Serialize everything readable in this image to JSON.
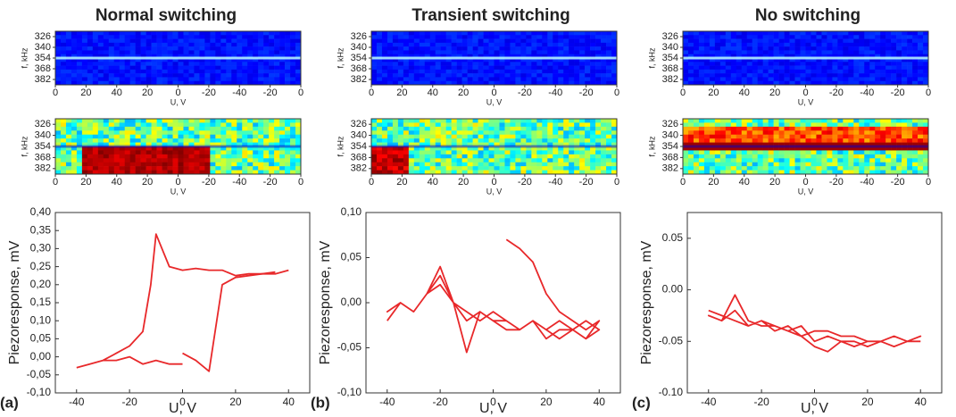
{
  "chart_data": [
    {
      "type": "line",
      "title": "Normal switching",
      "panel_label": "(a)",
      "xlabel": "U, V",
      "ylabel": "Piezoresponse, mV",
      "x": [
        -40,
        -35,
        -30,
        -25,
        -20,
        -15,
        -10,
        -5,
        0,
        5,
        10,
        15,
        20,
        25,
        30,
        35,
        40,
        35,
        30,
        25,
        20,
        15,
        10,
        5,
        0,
        -5,
        -10,
        -12,
        -15,
        -20,
        -25,
        -30,
        -35,
        -40,
        -35,
        -30,
        -25,
        -20,
        -15,
        -10,
        -5,
        0
      ],
      "series": [
        {
          "color": "#e8282a",
          "values": [
            -0.03,
            -0.02,
            -0.01,
            -0.01,
            0.0,
            -0.02,
            -0.01,
            -0.02,
            -0.02,
            null,
            null,
            null,
            null,
            null,
            null,
            null,
            null,
            0.235,
            0.23,
            0.23,
            0.225,
            0.24,
            0.24,
            0.245,
            0.24,
            0.25,
            0.34,
            0.2,
            0.07,
            0.03,
            0.01,
            -0.01,
            -0.02,
            -0.03,
            null,
            null,
            null,
            null,
            null,
            null,
            null,
            null
          ]
        },
        {
          "color": "#e8282a",
          "values": [
            null,
            null,
            null,
            null,
            null,
            null,
            null,
            null,
            0.01,
            -0.01,
            -0.04,
            0.2,
            0.22,
            0.225,
            0.23,
            0.23,
            0.24,
            null,
            null,
            null,
            null,
            null,
            null,
            null,
            null,
            null,
            null,
            null,
            null,
            null,
            null,
            null,
            null,
            null,
            null,
            null,
            null,
            null,
            null,
            null,
            null,
            null
          ]
        }
      ],
      "xlim": [
        -48,
        48
      ],
      "ylim": [
        -0.1,
        0.4
      ],
      "xticks": [
        -40,
        -20,
        0,
        20,
        40
      ],
      "yticks": [
        {
          "value": -0.1,
          "label": "-0,10"
        },
        {
          "value": -0.05,
          "label": "-0,05"
        },
        {
          "value": 0,
          "label": "0,00"
        },
        {
          "value": 0.05,
          "label": "0,05"
        },
        {
          "value": 0.1,
          "label": "0,10"
        },
        {
          "value": 0.15,
          "label": "0,15"
        },
        {
          "value": 0.2,
          "label": "0,20"
        },
        {
          "value": 0.25,
          "label": "0,25"
        },
        {
          "value": 0.3,
          "label": "0,30"
        },
        {
          "value": 0.35,
          "label": "0,35"
        },
        {
          "value": 0.4,
          "label": "0,40"
        }
      ],
      "spectrogram": {
        "ylabel": "f, kHz",
        "xlabel": "U, V",
        "ylim": [
          319,
          389
        ],
        "yticks": [
          326,
          340,
          354,
          368,
          382
        ],
        "xticks": [
          "0",
          "20",
          "40",
          "20",
          "0",
          "-20",
          "-40",
          "-20",
          "0"
        ],
        "resonance": 354
      }
    },
    {
      "type": "line",
      "title": "Transient switching",
      "panel_label": "(b)",
      "xlabel": "U, V",
      "ylabel": "Piezoresponse, mV",
      "x": [
        -40,
        -35,
        -30,
        -25,
        -20,
        -15,
        -10,
        -5,
        0,
        5,
        10,
        15,
        20,
        25,
        30,
        35,
        40,
        35,
        30,
        25,
        20,
        15,
        10,
        5,
        0,
        -5,
        -10,
        -15,
        -20,
        -25,
        -30,
        -35,
        -40,
        -35,
        -30,
        -25,
        -20,
        -15,
        -10,
        -5,
        0,
        5,
        10,
        15,
        20,
        25,
        30,
        35,
        40,
        35,
        30,
        25,
        20,
        15,
        10,
        5
      ],
      "series": [
        {
          "color": "#e8282a",
          "values": [
            -0.02,
            0.0,
            -0.01,
            0.01,
            0.04,
            0.0,
            -0.02,
            -0.01,
            -0.02,
            -0.03,
            -0.03,
            -0.02,
            -0.03,
            -0.04,
            -0.03,
            -0.02,
            -0.03,
            -0.04,
            -0.03,
            -0.02,
            -0.03,
            -0.02,
            -0.03,
            -0.02,
            -0.01,
            -0.02,
            -0.01,
            0.0,
            0.03,
            0.01,
            -0.01,
            0.0,
            -0.01,
            0.0,
            -0.01,
            0.01,
            0.02,
            0.0,
            -0.055,
            -0.01,
            -0.02,
            -0.02,
            -0.03,
            -0.02,
            -0.04,
            -0.03,
            -0.03,
            -0.04,
            -0.02,
            -0.03,
            -0.02,
            -0.01,
            0.01,
            0.045,
            0.06,
            0.07
          ]
        }
      ],
      "xlim": [
        -48,
        48
      ],
      "ylim": [
        -0.1,
        0.1
      ],
      "xticks": [
        -40,
        -20,
        0,
        20,
        40
      ],
      "yticks": [
        {
          "value": -0.1,
          "label": "-0,10"
        },
        {
          "value": -0.05,
          "label": "-0,05"
        },
        {
          "value": 0,
          "label": "0,00"
        },
        {
          "value": 0.05,
          "label": "0,05"
        },
        {
          "value": 0.1,
          "label": "0,10"
        }
      ],
      "spectrogram": {
        "ylabel": "f, kHz",
        "xlabel": "U, V",
        "ylim": [
          319,
          389
        ],
        "yticks": [
          326,
          340,
          354,
          368,
          382
        ],
        "xticks": [
          "0",
          "20",
          "40",
          "20",
          "0",
          "-20",
          "-40",
          "-20",
          "0"
        ],
        "resonance": 354
      }
    },
    {
      "type": "line",
      "title": "No switching",
      "panel_label": "(c)",
      "xlabel": "U, V",
      "ylabel": "Piezoresponse, mV",
      "x": [
        -40,
        -35,
        -30,
        -25,
        -20,
        -15,
        -10,
        -5,
        0,
        5,
        10,
        15,
        20,
        25,
        30,
        35,
        40,
        35,
        30,
        25,
        20,
        15,
        10,
        5,
        0,
        -5,
        -10,
        -15,
        -20,
        -25,
        -30,
        -35,
        -40,
        -35,
        -30,
        -25,
        -20,
        -15,
        -10,
        -5,
        0,
        5,
        10,
        15,
        20,
        25,
        30,
        35,
        40
      ],
      "series": [
        {
          "color": "#e8282a",
          "values": [
            -0.02,
            -0.025,
            -0.03,
            -0.035,
            -0.03,
            -0.035,
            -0.04,
            -0.035,
            -0.05,
            -0.045,
            -0.05,
            -0.05,
            -0.055,
            -0.05,
            -0.045,
            -0.05,
            -0.045,
            -0.05,
            -0.055,
            -0.05,
            -0.05,
            -0.045,
            -0.045,
            -0.04,
            -0.04,
            -0.045,
            -0.04,
            -0.035,
            -0.035,
            -0.03,
            -0.005,
            -0.03,
            -0.025,
            -0.03,
            -0.02,
            -0.035,
            -0.03,
            -0.04,
            -0.035,
            -0.045,
            -0.055,
            -0.06,
            -0.05,
            -0.055,
            -0.05,
            -0.05,
            -0.055,
            -0.05,
            -0.05
          ]
        }
      ],
      "xlim": [
        -48,
        48
      ],
      "ylim": [
        -0.1,
        0.075
      ],
      "xticks": [
        -40,
        -20,
        0,
        20,
        40
      ],
      "yticks": [
        {
          "value": -0.1,
          "label": "-0.10"
        },
        -0.05,
        {
          "value": 0,
          "label": "0.00"
        },
        0.05
      ],
      "spectrogram": {
        "ylabel": "f, kHz",
        "xlabel": "U, V",
        "ylim": [
          319,
          389
        ],
        "yticks": [
          326,
          340,
          354,
          368,
          382
        ],
        "xticks": [
          "0",
          "20",
          "40",
          "20",
          "0",
          "-20",
          "-40",
          "-20",
          "0"
        ],
        "resonance": 354
      }
    }
  ]
}
